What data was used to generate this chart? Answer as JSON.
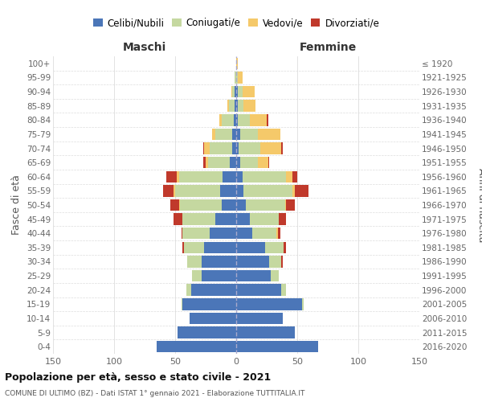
{
  "age_groups": [
    "0-4",
    "5-9",
    "10-14",
    "15-19",
    "20-24",
    "25-29",
    "30-34",
    "35-39",
    "40-44",
    "45-49",
    "50-54",
    "55-59",
    "60-64",
    "65-69",
    "70-74",
    "75-79",
    "80-84",
    "85-89",
    "90-94",
    "95-99",
    "100+"
  ],
  "birth_years": [
    "2016-2020",
    "2011-2015",
    "2006-2010",
    "2001-2005",
    "1996-2000",
    "1991-1995",
    "1986-1990",
    "1981-1985",
    "1976-1980",
    "1971-1975",
    "1966-1970",
    "1961-1965",
    "1956-1960",
    "1951-1955",
    "1946-1950",
    "1941-1945",
    "1936-1940",
    "1931-1935",
    "1926-1930",
    "1921-1925",
    "≤ 1920"
  ],
  "maschi": {
    "celibi": [
      65,
      48,
      38,
      44,
      37,
      28,
      28,
      26,
      22,
      17,
      12,
      13,
      11,
      5,
      3,
      3,
      2,
      1,
      1,
      0,
      0
    ],
    "coniugati": [
      0,
      0,
      0,
      1,
      4,
      8,
      12,
      17,
      22,
      27,
      34,
      37,
      36,
      18,
      19,
      14,
      10,
      5,
      2,
      1,
      0
    ],
    "vedovi": [
      0,
      0,
      0,
      0,
      0,
      0,
      0,
      0,
      0,
      0,
      1,
      1,
      2,
      2,
      4,
      3,
      2,
      1,
      1,
      0,
      0
    ],
    "divorziati": [
      0,
      0,
      0,
      0,
      0,
      0,
      0,
      1,
      1,
      7,
      7,
      9,
      8,
      2,
      1,
      0,
      0,
      0,
      0,
      0,
      0
    ]
  },
  "femmine": {
    "nubili": [
      67,
      48,
      38,
      54,
      37,
      28,
      27,
      24,
      13,
      11,
      8,
      6,
      5,
      3,
      2,
      3,
      1,
      1,
      1,
      0,
      0
    ],
    "coniugate": [
      0,
      0,
      0,
      1,
      4,
      7,
      10,
      15,
      20,
      24,
      32,
      40,
      36,
      15,
      18,
      15,
      10,
      5,
      4,
      1,
      0
    ],
    "vedove": [
      0,
      0,
      0,
      0,
      0,
      0,
      0,
      0,
      1,
      0,
      1,
      2,
      5,
      8,
      17,
      18,
      14,
      10,
      10,
      4,
      1
    ],
    "divorziate": [
      0,
      0,
      0,
      0,
      0,
      0,
      1,
      2,
      2,
      6,
      7,
      11,
      4,
      1,
      1,
      0,
      1,
      0,
      0,
      0,
      0
    ]
  },
  "colors": {
    "celibi_nubili": "#4b76b8",
    "coniugati": "#c5d8a0",
    "vedovi": "#f5c96a",
    "divorziati": "#c0392b"
  },
  "title": "Popolazione per età, sesso e stato civile - 2021",
  "subtitle": "COMUNE DI ULTIMO (BZ) - Dati ISTAT 1° gennaio 2021 - Elaborazione TUTTITALIA.IT",
  "xlabel_left": "Maschi",
  "xlabel_right": "Femmine",
  "ylabel_left": "Fasce di età",
  "ylabel_right": "Anni di nascita",
  "xlim": 150,
  "background_color": "#ffffff",
  "grid_color": "#cccccc"
}
